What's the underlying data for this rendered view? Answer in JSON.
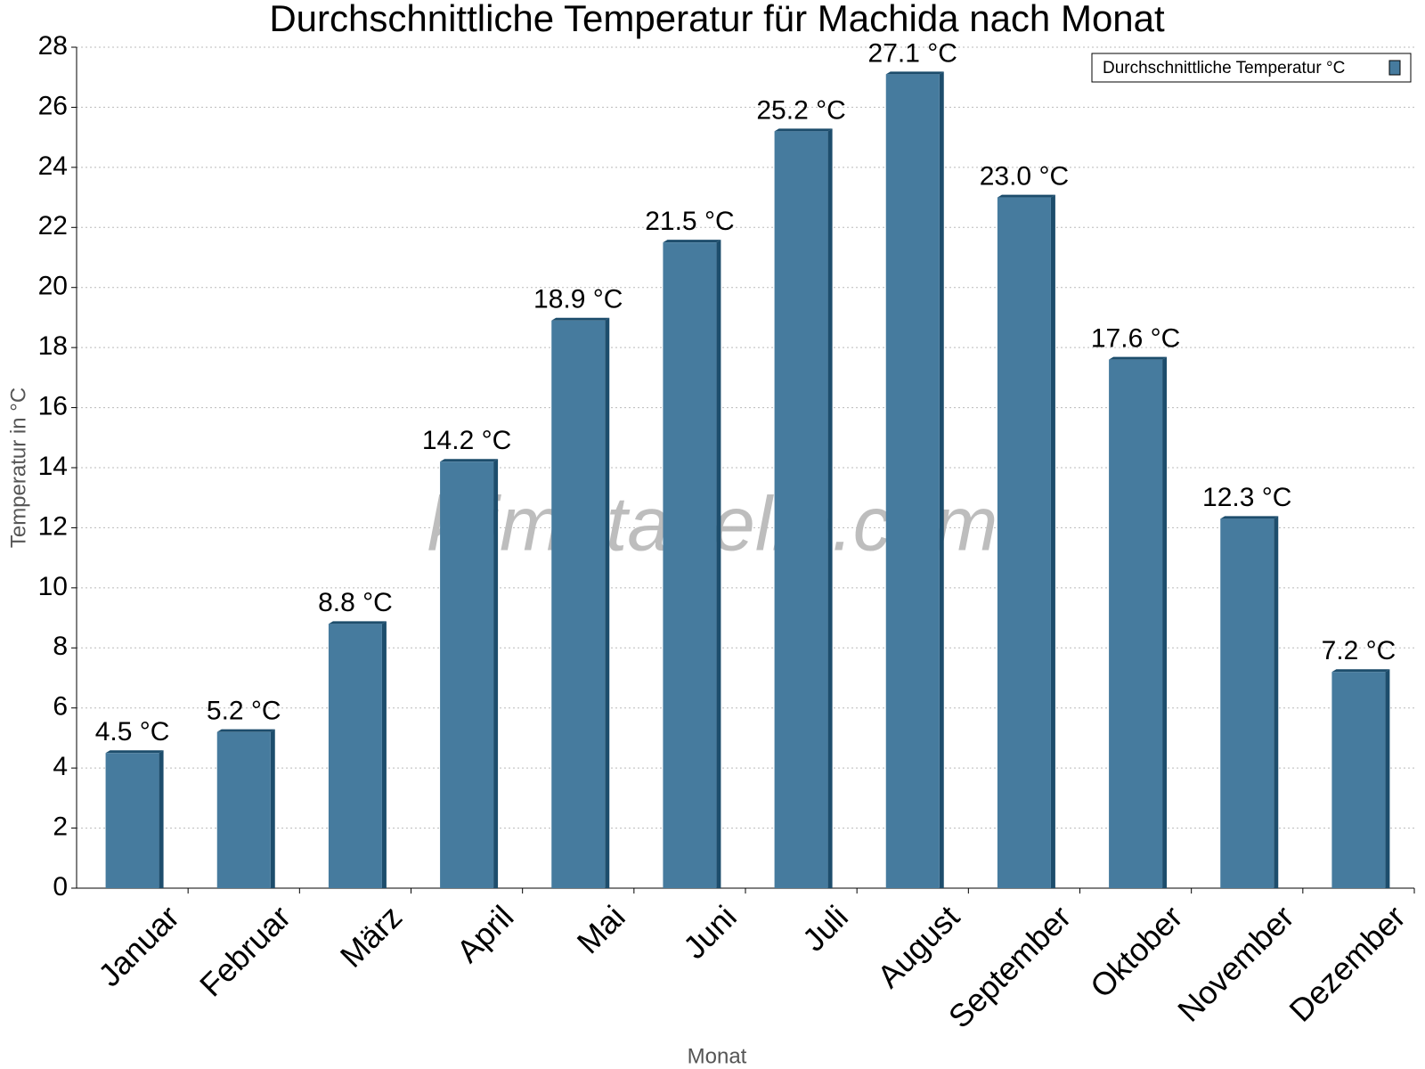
{
  "chart_data": {
    "type": "bar",
    "title": "Durchschnittliche Temperatur für Machida nach Monat",
    "x_label": "Monat",
    "y_label": "Temperatur in °C",
    "watermark": "klimatabelle.com",
    "categories": [
      "Januar",
      "Februar",
      "März",
      "April",
      "Mai",
      "Juni",
      "Juli",
      "August",
      "September",
      "Oktober",
      "November",
      "Dezember"
    ],
    "series": [
      {
        "name": "Durchschnittliche Temperatur °C",
        "color": "#467b9e",
        "values": [
          4.5,
          5.2,
          8.8,
          14.2,
          18.9,
          21.5,
          25.2,
          27.1,
          23.0,
          17.6,
          12.3,
          7.2
        ],
        "value_labels": [
          "4.5 °C",
          "5.2 °C",
          "8.8 °C",
          "14.2 °C",
          "18.9 °C",
          "21.5 °C",
          "25.2 °C",
          "27.1 °C",
          "23.0 °C",
          "17.6 °C",
          "12.3 °C",
          "7.2 °C"
        ]
      }
    ],
    "ylim": [
      0,
      28
    ],
    "yticks": [
      0,
      2,
      4,
      6,
      8,
      10,
      12,
      14,
      16,
      18,
      20,
      22,
      24,
      26,
      28
    ],
    "grid": true,
    "legend": "top-right"
  }
}
